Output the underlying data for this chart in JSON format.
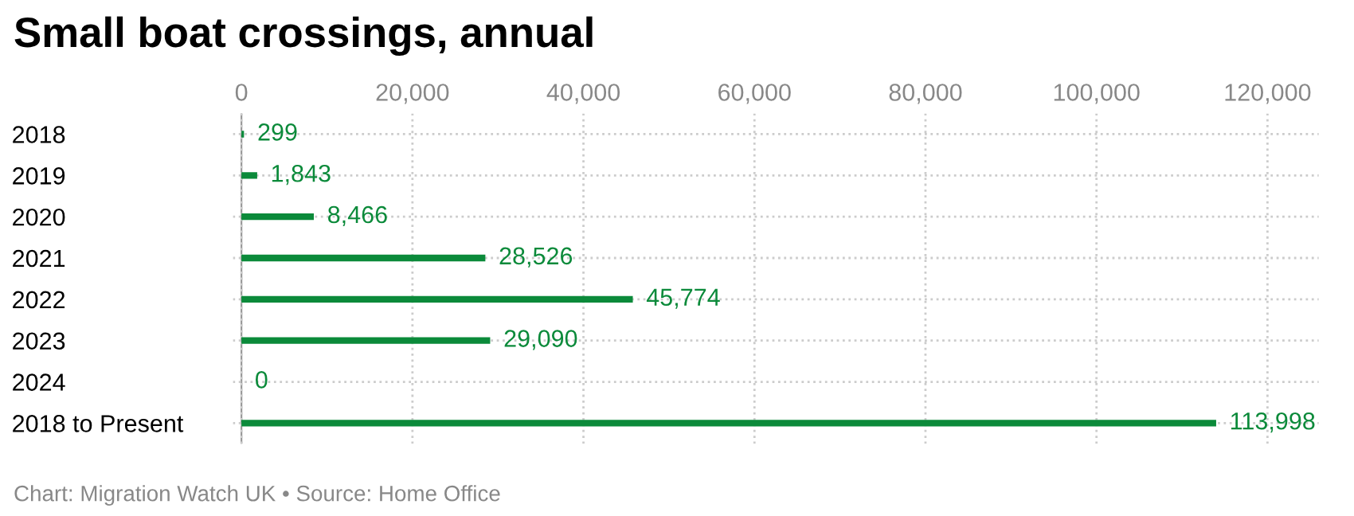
{
  "chart_data": {
    "type": "bar",
    "orientation": "horizontal",
    "title": "Small boat crossings, annual",
    "categories": [
      "2018",
      "2019",
      "2020",
      "2021",
      "2022",
      "2023",
      "2024",
      "2018 to Present"
    ],
    "values": [
      299,
      1843,
      8466,
      28526,
      45774,
      29090,
      0,
      113998
    ],
    "color": "#0b8a3a",
    "xlim": [
      -1000,
      126000
    ],
    "xticks": [
      {
        "value": 0,
        "label": "0"
      },
      {
        "value": 20000,
        "label": "20,000"
      },
      {
        "value": 40000,
        "label": "40,000"
      },
      {
        "value": 60000,
        "label": "60,000"
      },
      {
        "value": 80000,
        "label": "80,000"
      },
      {
        "value": 100000,
        "label": "100,000"
      },
      {
        "value": 120000,
        "label": "120,000"
      }
    ],
    "value_labels": [
      "299",
      "1,843",
      "8,466",
      "28,526",
      "45,774",
      "29,090",
      "0",
      "113,998"
    ],
    "grid": true,
    "annotations": [
      "Chart: Migration Watch UK • Source: Home Office"
    ]
  }
}
